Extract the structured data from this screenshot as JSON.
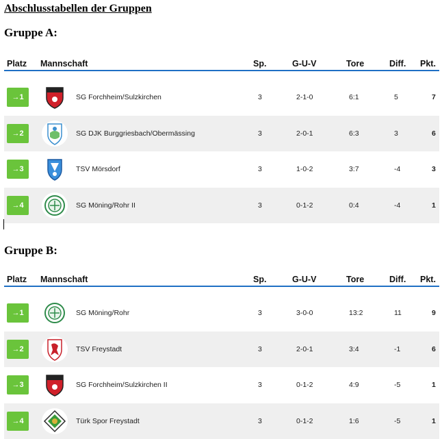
{
  "title": "Abschlusstabellen der Gruppen",
  "colors": {
    "header_line": "#1f6fc4",
    "rank_badge": "#6ac43b",
    "alt_row": "#efefef"
  },
  "headers": {
    "platz": "Platz",
    "team": "Mannschaft",
    "sp": "Sp.",
    "guv": "G-U-V",
    "tore": "Tore",
    "diff": "Diff.",
    "pkt": "Pkt."
  },
  "groups": [
    {
      "title": "Gruppe A:",
      "rows": [
        {
          "rank": "→1",
          "team": "SG Forchheim/Sulzkirchen",
          "logo": "red-shield-logo",
          "sp": "3",
          "guv": "2-1-0",
          "tore": "6:1",
          "diff": "5",
          "pkt": "7"
        },
        {
          "rank": "→2",
          "team": "SG DJK Burggriesbach/Obermässing",
          "logo": "green-blue-crest-logo",
          "sp": "3",
          "guv": "2-0-1",
          "tore": "6:3",
          "diff": "3",
          "pkt": "6"
        },
        {
          "rank": "→3",
          "team": "TSV Mörsdorf",
          "logo": "blue-shield-logo",
          "sp": "3",
          "guv": "1-0-2",
          "tore": "3:7",
          "diff": "-4",
          "pkt": "3"
        },
        {
          "rank": "→4",
          "team": "SG Möning/Rohr II",
          "logo": "green-round-logo",
          "sp": "3",
          "guv": "0-1-2",
          "tore": "0:4",
          "diff": "-4",
          "pkt": "1"
        }
      ]
    },
    {
      "title": "Gruppe B:",
      "rows": [
        {
          "rank": "→1",
          "team": "SG Möning/Rohr",
          "logo": "green-round-logo",
          "sp": "3",
          "guv": "3-0-0",
          "tore": "13:2",
          "diff": "11",
          "pkt": "9"
        },
        {
          "rank": "→2",
          "team": "TSV Freystadt",
          "logo": "red-lion-shield-logo",
          "sp": "3",
          "guv": "2-0-1",
          "tore": "3:4",
          "diff": "-1",
          "pkt": "6"
        },
        {
          "rank": "→3",
          "team": "SG Forchheim/Sulzkirchen II",
          "logo": "red-shield-logo",
          "sp": "3",
          "guv": "0-1-2",
          "tore": "4:9",
          "diff": "-5",
          "pkt": "1"
        },
        {
          "rank": "→4",
          "team": "Türk Spor Freystadt",
          "logo": "green-diamond-logo",
          "sp": "3",
          "guv": "0-1-2",
          "tore": "1:6",
          "diff": "-5",
          "pkt": "1"
        }
      ]
    }
  ]
}
